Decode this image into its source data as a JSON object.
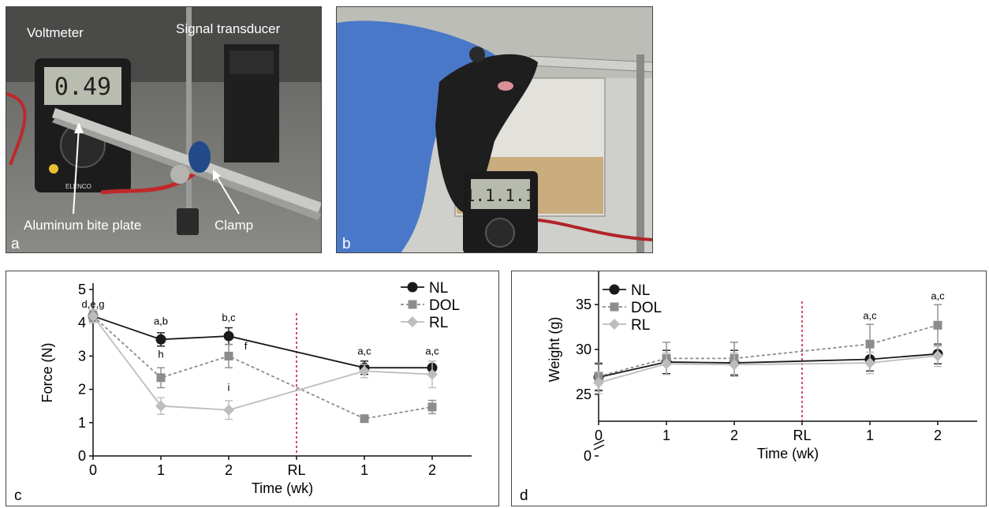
{
  "panel_a": {
    "letter": "a",
    "labels": {
      "voltmeter": "Voltmeter",
      "signal_transducer": "Signal transducer",
      "bite_plate": "Aluminum bite plate",
      "clamp": "Clamp"
    },
    "meter_display": "0.49",
    "meter_brand": "ELENCO"
  },
  "panel_b": {
    "letter": "b",
    "meter_display": "1.1.1.1"
  },
  "chart_data": [
    {
      "panel": "c",
      "type": "line",
      "xlabel": "Time (wk)",
      "ylabel": "Force (N)",
      "categories": [
        "0",
        "1",
        "2",
        "RL",
        "1",
        "2"
      ],
      "ylim": [
        0,
        5
      ],
      "yticks": [
        "0",
        "1",
        "2",
        "3",
        "4",
        "5"
      ],
      "series": [
        {
          "name": "NL",
          "color": "#1a1a1a",
          "dash": "solid",
          "marker": "circle",
          "x": [
            0,
            1,
            2,
            4,
            5
          ],
          "values": [
            4.2,
            3.5,
            3.6,
            2.65,
            2.65
          ],
          "err": [
            0.15,
            0.2,
            0.25,
            0.2,
            0.2
          ]
        },
        {
          "name": "DOL",
          "color": "#8c8c8c",
          "dash": "dashed",
          "marker": "square",
          "x": [
            0,
            1,
            2,
            4,
            5
          ],
          "values": [
            4.2,
            2.35,
            3.0,
            1.12,
            1.47
          ],
          "err": [
            0.15,
            0.3,
            0.35,
            0.08,
            0.2
          ]
        },
        {
          "name": "RL",
          "color": "#bdbdbd",
          "dash": "solid",
          "marker": "diamond",
          "x": [
            0,
            1,
            2,
            4,
            5
          ],
          "values": [
            4.2,
            1.5,
            1.38,
            2.55,
            2.45
          ],
          "err": [
            0.2,
            0.25,
            0.28,
            0.2,
            0.4
          ]
        }
      ],
      "annotations": [
        {
          "x": 0,
          "y": 4.45,
          "text": "d,e,g"
        },
        {
          "x": 1,
          "y": 3.95,
          "text": "a,b"
        },
        {
          "x": 1,
          "y": 2.95,
          "text": "h"
        },
        {
          "x": 2,
          "y": 4.05,
          "text": "b,c"
        },
        {
          "x": 2.25,
          "y": 3.2,
          "text": "f"
        },
        {
          "x": 2,
          "y": 1.95,
          "text": "i"
        },
        {
          "x": 4,
          "y": 3.05,
          "text": "a,c"
        },
        {
          "x": 5,
          "y": 3.05,
          "text": "a,c"
        }
      ],
      "rl_marker": 3,
      "legend": "top-right"
    },
    {
      "panel": "d",
      "type": "line",
      "xlabel": "Time (wk)",
      "ylabel": "Weight (g)",
      "categories": [
        "0",
        "1",
        "2",
        "RL",
        "1",
        "2"
      ],
      "ylim": [
        22,
        38
      ],
      "yticks": [
        "25",
        "30",
        "35"
      ],
      "zero_tick": "0",
      "axis_break": true,
      "series": [
        {
          "name": "NL",
          "color": "#1a1a1a",
          "dash": "solid",
          "marker": "circle",
          "x": [
            0,
            1,
            2,
            4,
            5
          ],
          "values": [
            26.9,
            28.6,
            28.5,
            28.9,
            29.5
          ],
          "err": [
            1.5,
            1.3,
            1.4,
            1.3,
            1.1
          ]
        },
        {
          "name": "DOL",
          "color": "#8c8c8c",
          "dash": "dashed",
          "marker": "square",
          "x": [
            0,
            1,
            2,
            4,
            5
          ],
          "values": [
            27.0,
            29.0,
            29.0,
            30.6,
            32.7
          ],
          "err": [
            1.5,
            1.8,
            1.8,
            2.2,
            2.3
          ]
        },
        {
          "name": "RL",
          "color": "#bdbdbd",
          "dash": "solid",
          "marker": "diamond",
          "x": [
            0,
            1,
            2,
            4,
            5
          ],
          "values": [
            26.3,
            28.4,
            28.3,
            28.5,
            29.3
          ],
          "err": [
            1.2,
            1.2,
            1.3,
            1.2,
            1.2
          ]
        }
      ],
      "annotations": [
        {
          "x": 4,
          "y": 33.4,
          "text": "a,c"
        },
        {
          "x": 5,
          "y": 35.6,
          "text": "a,c"
        }
      ],
      "rl_marker": 3,
      "legend": "top-left"
    }
  ]
}
